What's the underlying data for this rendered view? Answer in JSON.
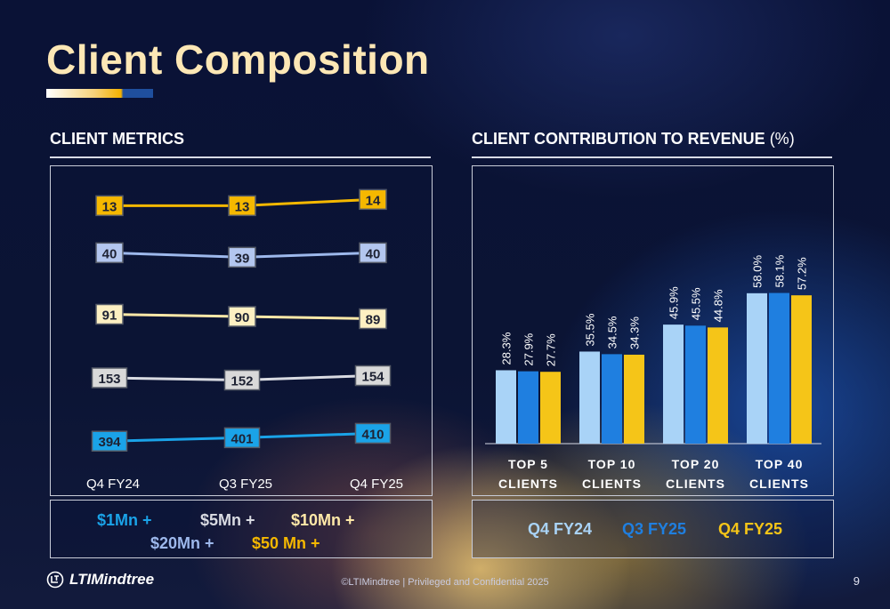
{
  "title": "Client Composition",
  "left_section": {
    "title": "CLIENT METRICS",
    "legend": [
      {
        "label": "$1Mn +",
        "color": "#1aa3e8"
      },
      {
        "label": "$5Mn +",
        "color": "#d9dbe2"
      },
      {
        "label": "$10Mn +",
        "color": "#ffe9a8"
      },
      {
        "label": "$20Mn +",
        "color": "#9db8ec"
      },
      {
        "label": "$50 Mn +",
        "color": "#f5b800"
      }
    ]
  },
  "right_section": {
    "title": "CLIENT CONTRIBUTION TO REVENUE",
    "unit": " (%)",
    "legend": [
      {
        "label": "Q4 FY24",
        "color": "#a9d3f7"
      },
      {
        "label": "Q3 FY25",
        "color": "#1f7fe0"
      },
      {
        "label": "Q4 FY25",
        "color": "#f5c518"
      }
    ]
  },
  "chart_data": [
    {
      "type": "line",
      "categories": [
        "Q4 FY24",
        "Q3 FY25",
        "Q4 FY25"
      ],
      "series": [
        {
          "name": "$50 Mn +",
          "values": [
            13,
            13,
            14
          ],
          "color": "#f5b800",
          "label_bg": "#f5b800"
        },
        {
          "name": "$20Mn +",
          "values": [
            40,
            39,
            40
          ],
          "color": "#9db8ec",
          "label_bg": "#b3c6ef"
        },
        {
          "name": "$10Mn +",
          "values": [
            91,
            90,
            89
          ],
          "color": "#ffe9a8",
          "label_bg": "#fdf0c2"
        },
        {
          "name": "$5Mn +",
          "values": [
            153,
            152,
            154
          ],
          "color": "#d9dbe2",
          "label_bg": "#d9d9d9"
        },
        {
          "name": "$1Mn +",
          "values": [
            394,
            401,
            410
          ],
          "color": "#1aa3e8",
          "label_bg": "#1aa3e8"
        }
      ],
      "legend_position": "bottom",
      "grid": false
    },
    {
      "type": "bar",
      "categories": [
        "TOP 5 CLIENTS",
        "TOP 10 CLIENTS",
        "TOP 20 CLIENTS",
        "TOP 40 CLIENTS"
      ],
      "series": [
        {
          "name": "Q4 FY24",
          "values": [
            28.3,
            35.5,
            45.9,
            58.0
          ],
          "labels": [
            "28.3%",
            "35.5%",
            "45.9%",
            "58.0%"
          ],
          "color": "#a9d3f7"
        },
        {
          "name": "Q3 FY25",
          "values": [
            27.9,
            34.5,
            45.5,
            58.1
          ],
          "labels": [
            "27.9%",
            "34.5%",
            "45.5%",
            "58.1%"
          ],
          "color": "#1f7fe0"
        },
        {
          "name": "Q4 FY25",
          "values": [
            27.7,
            34.3,
            44.8,
            57.2
          ],
          "labels": [
            "27.7%",
            "34.3%",
            "44.8%",
            "57.2%"
          ],
          "color": "#f5c518"
        }
      ],
      "ylim": [
        0,
        60
      ],
      "legend_position": "bottom",
      "grid": false
    }
  ],
  "footer": {
    "logo": "LTIMindtree",
    "text": "©LTIMindtree | Privileged and Confidential 2025",
    "page": "9"
  }
}
